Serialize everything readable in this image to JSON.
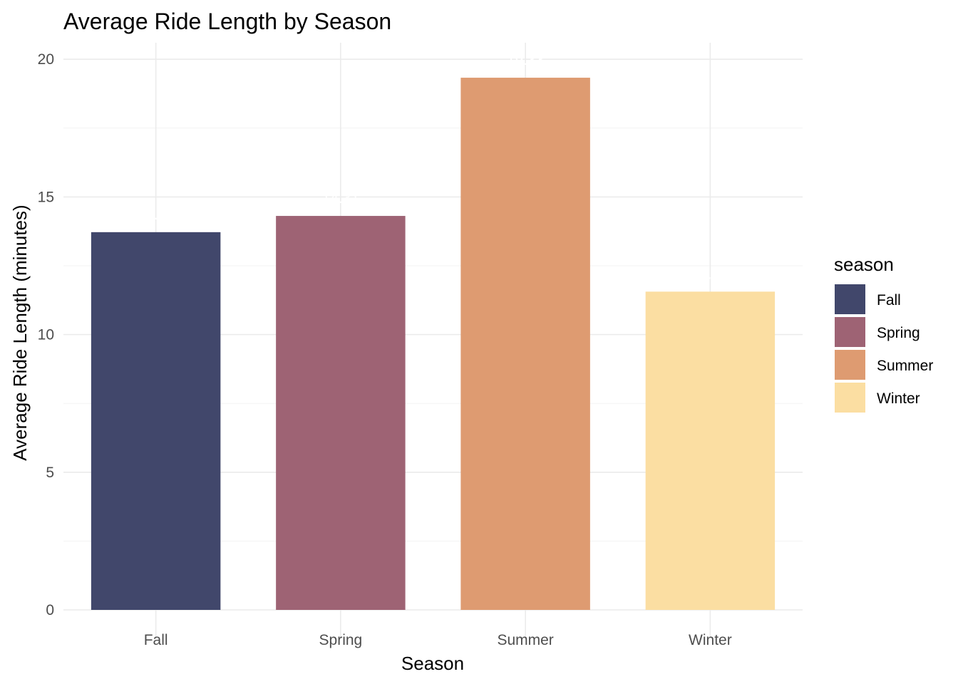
{
  "chart_data": {
    "type": "bar",
    "title": "Average Ride Length by Season",
    "xlabel": "Season",
    "ylabel": "Average Ride Length (minutes)",
    "categories": [
      "Fall",
      "Spring",
      "Summer",
      "Winter"
    ],
    "values": [
      13.72,
      14.31,
      19.33,
      11.56
    ],
    "data_labels": [
      "13.72",
      "14.31",
      "19.33",
      "11.56"
    ],
    "ylim": [
      0,
      20.6
    ],
    "yticks": [
      0,
      5,
      10,
      15,
      20
    ],
    "grid": true,
    "legend": {
      "title": "season",
      "placement": "right",
      "entries": [
        "Fall",
        "Spring",
        "Summer",
        "Winter"
      ]
    },
    "colors": [
      "#41476b",
      "#9e6374",
      "#de9b71",
      "#fbdea2"
    ]
  }
}
